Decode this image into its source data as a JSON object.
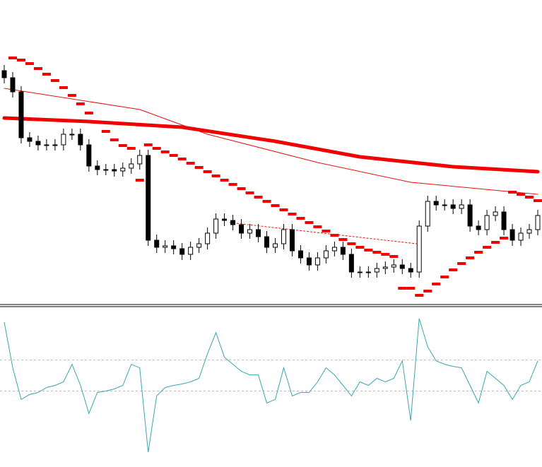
{
  "chart_data": [
    {
      "type": "candlestick",
      "xlim": [
        -0.5,
        63.5
      ],
      "ylim": [
        0,
        430
      ],
      "up_color": "#ffffff",
      "down_color": "#000000",
      "wick_color": "#000000",
      "open": [
        330,
        320,
        300,
        235,
        230,
        225,
        225,
        225,
        240,
        240,
        225,
        195,
        190,
        190,
        188,
        192,
        198,
        210,
        90,
        80,
        82,
        78,
        70,
        80,
        85,
        100,
        120,
        118,
        112,
        100,
        105,
        95,
        80,
        85,
        105,
        75,
        65,
        55,
        65,
        75,
        80,
        70,
        45,
        45,
        45,
        50,
        52,
        55,
        50,
        45,
        110,
        145,
        140,
        140,
        135,
        140,
        110,
        105,
        125,
        130,
        105,
        90,
        100,
        105
      ],
      "high": [
        338,
        328,
        308,
        243,
        238,
        233,
        233,
        248,
        248,
        248,
        233,
        203,
        198,
        198,
        200,
        206,
        218,
        218,
        98,
        90,
        90,
        86,
        88,
        93,
        108,
        128,
        128,
        126,
        120,
        113,
        113,
        103,
        93,
        113,
        113,
        83,
        73,
        73,
        83,
        88,
        88,
        78,
        53,
        53,
        58,
        60,
        63,
        63,
        58,
        118,
        153,
        153,
        148,
        148,
        148,
        148,
        118,
        133,
        138,
        138,
        113,
        108,
        113,
        133
      ],
      "low": [
        312,
        292,
        227,
        222,
        217,
        217,
        217,
        217,
        232,
        217,
        187,
        182,
        182,
        180,
        180,
        184,
        190,
        82,
        72,
        72,
        70,
        62,
        62,
        72,
        77,
        92,
        110,
        104,
        92,
        92,
        87,
        72,
        72,
        77,
        67,
        57,
        47,
        47,
        57,
        67,
        62,
        37,
        37,
        37,
        37,
        42,
        44,
        42,
        37,
        37,
        102,
        132,
        132,
        127,
        127,
        102,
        97,
        97,
        117,
        97,
        82,
        82,
        92,
        97
      ],
      "close": [
        320,
        300,
        235,
        230,
        225,
        225,
        225,
        240,
        240,
        225,
        195,
        190,
        190,
        188,
        192,
        198,
        210,
        90,
        80,
        82,
        78,
        70,
        80,
        85,
        100,
        120,
        118,
        112,
        100,
        105,
        95,
        80,
        85,
        105,
        75,
        65,
        55,
        65,
        75,
        80,
        70,
        45,
        45,
        45,
        50,
        52,
        55,
        50,
        45,
        110,
        145,
        140,
        140,
        135,
        140,
        110,
        105,
        125,
        130,
        105,
        90,
        100,
        105,
        125
      ],
      "series": [
        {
          "style": "thin",
          "color": "#e8120c",
          "x": [
            0,
            16,
            24,
            37,
            48,
            63
          ],
          "values": [
            305,
            275,
            240,
            200,
            172,
            155
          ]
        },
        {
          "style": "thick",
          "color": "#f00000",
          "x": [
            0,
            10,
            21,
            32,
            42,
            53,
            63
          ],
          "values": [
            263,
            258,
            250,
            230,
            208,
            194,
            187
          ]
        }
      ],
      "sar": {
        "color": "#f00000",
        "values": [
          null,
          348,
          345,
          340,
          333,
          325,
          316,
          306,
          295,
          283,
          270,
          257,
          244,
          232,
          224,
          220,
          175,
          225,
          220,
          215,
          210,
          205,
          199,
          193,
          187,
          181,
          175,
          169,
          163,
          157,
          151,
          145,
          139,
          133,
          127,
          121,
          115,
          109,
          103,
          97,
          91,
          85,
          80,
          76,
          73,
          70,
          67,
          22,
          22,
          12,
          18,
          28,
          38,
          48,
          57,
          65,
          73,
          80,
          87,
          93,
          158,
          155,
          151,
          146
        ]
      },
      "trendline": {
        "color": "#e8120c",
        "x": [
          26.6,
          48.7
        ],
        "values": [
          115,
          85
        ]
      }
    },
    {
      "type": "line",
      "xlim": [
        -0.5,
        63.5
      ],
      "ylim": [
        0,
        110
      ],
      "color": "#3aa6b0",
      "levels": [
        73,
        51
      ],
      "level_color": "#bbbbbb",
      "values": [
        100,
        67.5,
        45,
        48.5,
        50,
        53.5,
        55,
        57.5,
        70,
        55,
        35,
        50,
        51,
        52.5,
        55,
        70,
        67.5,
        7.5,
        47.5,
        53.5,
        55,
        56,
        57.5,
        60,
        77.5,
        92.5,
        75,
        70,
        65,
        62.5,
        62.5,
        42.5,
        45,
        67.5,
        47.5,
        50,
        50,
        57.5,
        67.5,
        62.5,
        55,
        47.5,
        57.5,
        55,
        60,
        57.5,
        60,
        72.5,
        30,
        102.5,
        82.5,
        72.5,
        70,
        68.5,
        67.5,
        55,
        42.5,
        65,
        60,
        55,
        45,
        55,
        57.5,
        72.5
      ]
    }
  ]
}
